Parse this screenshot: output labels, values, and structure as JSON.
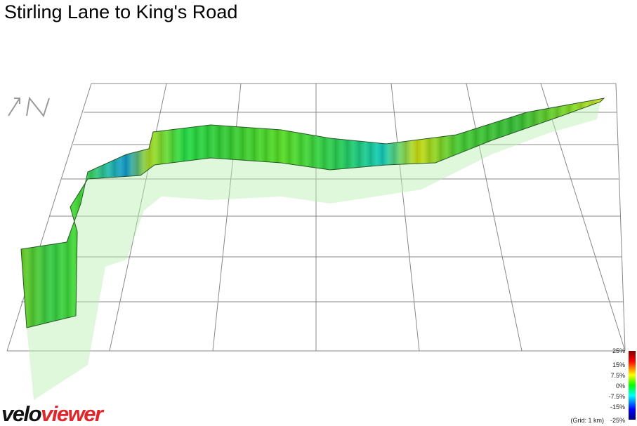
{
  "title": "Stirling Lane to King's Road",
  "legend": {
    "labels": [
      "25%",
      "15%",
      "7.5%",
      "0%",
      "-7.5%",
      "-15%",
      "-25%"
    ]
  },
  "grid_note": "(Grid: 1 km)",
  "logo": {
    "first": "velo",
    "second": "viewer"
  }
}
